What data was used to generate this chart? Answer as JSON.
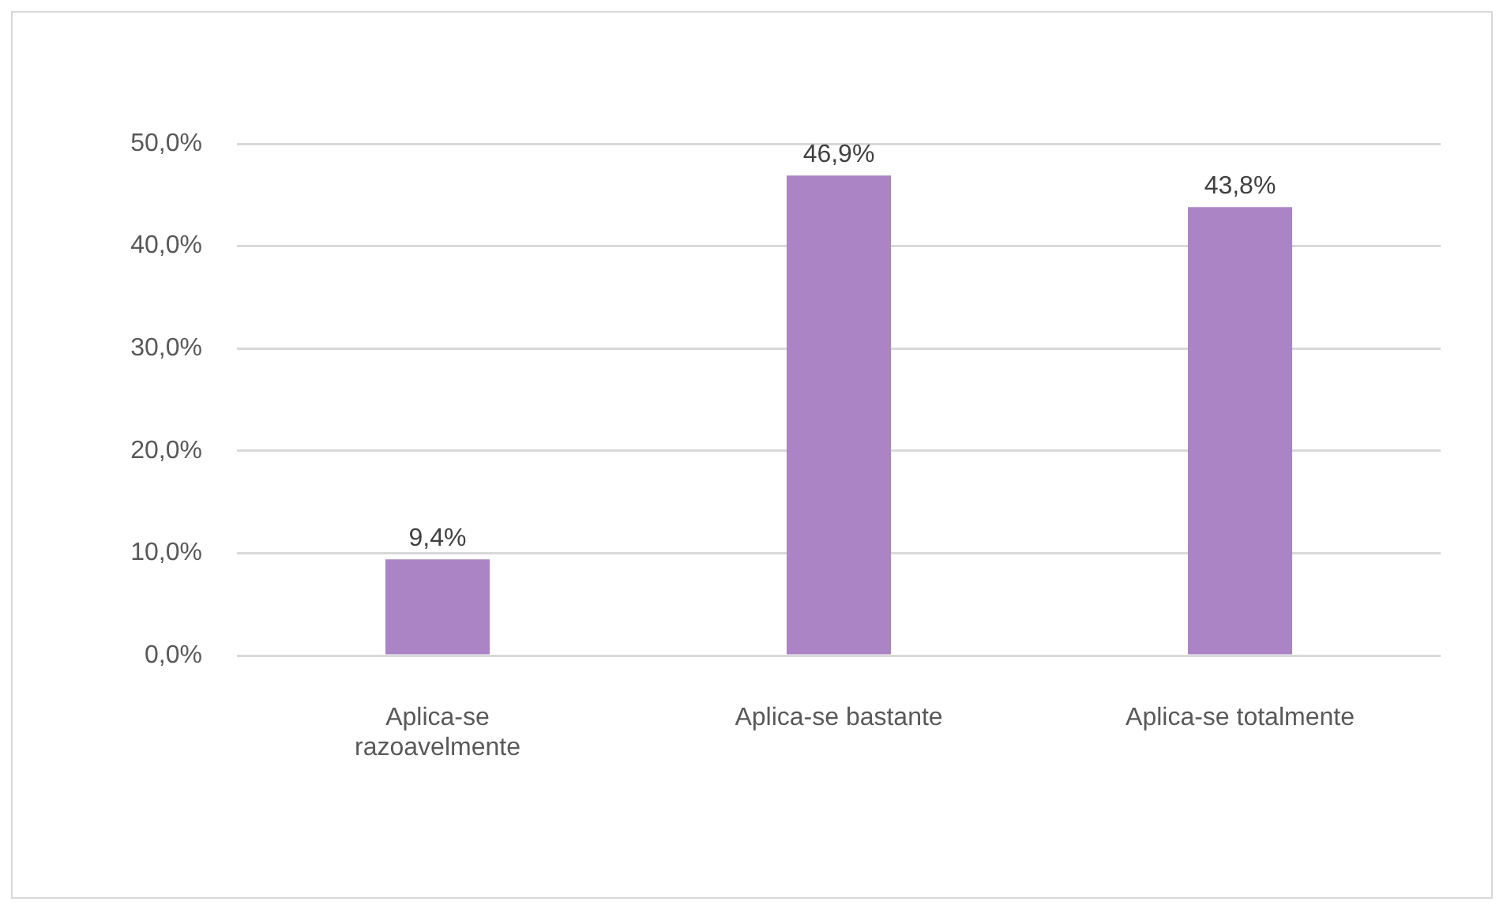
{
  "chart_data": {
    "type": "bar",
    "categories": [
      "Aplica-se razoavelmente",
      "Aplica-se bastante",
      "Aplica-se totalmente"
    ],
    "values": [
      9.4,
      46.9,
      43.8
    ],
    "color": "#ab84c6",
    "value_labels": [
      "9,4%",
      "46,9%",
      "43,8%"
    ],
    "ylim": [
      0,
      50
    ],
    "yticks": [
      {
        "value": 0,
        "label": "0,0%"
      },
      {
        "value": 10,
        "label": "10,0%"
      },
      {
        "value": 20,
        "label": "20,0%"
      },
      {
        "value": 30,
        "label": "30,0%"
      },
      {
        "value": 40,
        "label": "40,0%"
      },
      {
        "value": 50,
        "label": "50,0%"
      }
    ],
    "grid": "y"
  }
}
